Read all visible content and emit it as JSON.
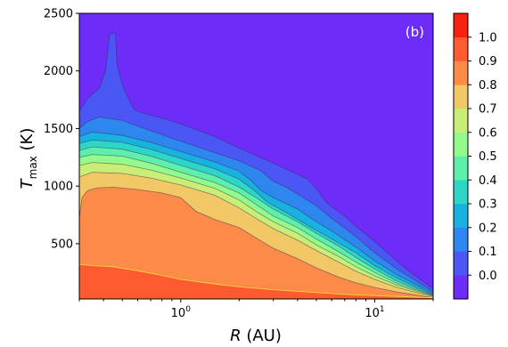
{
  "chart_data": {
    "type": "heatmap",
    "subtype": "filled-contour",
    "panel_label": "(b)",
    "xlabel": {
      "symbol": "R",
      "unit": " (AU)"
    },
    "ylabel": {
      "symbol": "T",
      "subscript": "max",
      "unit": " (K)"
    },
    "x_scale": "log",
    "xlim": [
      0.3,
      20
    ],
    "ylim": [
      20,
      2500
    ],
    "x_ticks": [
      {
        "value": 1,
        "base": "10",
        "exp": "0"
      },
      {
        "value": 10,
        "base": "10",
        "exp": "1"
      }
    ],
    "y_ticks": [
      500,
      1000,
      1500,
      2000,
      2500
    ],
    "colorbar": {
      "ticks": [
        "0.0",
        "0.1",
        "0.2",
        "0.3",
        "0.4",
        "0.5",
        "0.6",
        "0.7",
        "0.8",
        "0.9",
        "1.0"
      ],
      "levels": [
        0.0,
        0.1,
        0.2,
        0.3,
        0.4,
        0.5,
        0.6,
        0.7,
        0.8,
        0.9,
        1.0
      ],
      "colors": [
        "#6d2cf7",
        "#4a57f4",
        "#2e86ef",
        "#18b1e0",
        "#2dd6c6",
        "#5ef0aa",
        "#93fb8b",
        "#c9ee76",
        "#f2c867",
        "#fc8b48",
        "#ff5a30",
        "#f7210f"
      ]
    },
    "contour_boundaries": [
      {
        "level": 0.05,
        "points": [
          [
            0.3,
            1650
          ],
          [
            0.33,
            1760
          ],
          [
            0.38,
            1850
          ],
          [
            0.41,
            2000
          ],
          [
            0.43,
            2320
          ],
          [
            0.46,
            2330
          ],
          [
            0.47,
            2050
          ],
          [
            0.5,
            1880
          ],
          [
            0.53,
            1780
          ],
          [
            0.56,
            1700
          ],
          [
            0.58,
            1660
          ],
          [
            0.62,
            1640
          ],
          [
            0.8,
            1590
          ],
          [
            1.0,
            1540
          ],
          [
            1.5,
            1430
          ],
          [
            2.0,
            1330
          ],
          [
            3.0,
            1200
          ],
          [
            4.0,
            1100
          ],
          [
            4.5,
            1060
          ],
          [
            5.0,
            980
          ],
          [
            5.5,
            880
          ],
          [
            6.0,
            820
          ],
          [
            7.0,
            740
          ],
          [
            8.0,
            650
          ],
          [
            10.0,
            520
          ],
          [
            12.0,
            400
          ],
          [
            15.0,
            260
          ],
          [
            20.0,
            110
          ]
        ]
      },
      {
        "level": 0.15,
        "points": [
          [
            0.3,
            1500
          ],
          [
            0.33,
            1560
          ],
          [
            0.38,
            1600
          ],
          [
            0.5,
            1570
          ],
          [
            0.7,
            1480
          ],
          [
            1.0,
            1390
          ],
          [
            1.5,
            1290
          ],
          [
            2.0,
            1220
          ],
          [
            2.6,
            1130
          ],
          [
            3.0,
            1040
          ],
          [
            3.5,
            990
          ],
          [
            4.0,
            930
          ],
          [
            5.0,
            830
          ],
          [
            6.0,
            720
          ],
          [
            8.0,
            560
          ],
          [
            10.0,
            420
          ],
          [
            13.0,
            280
          ],
          [
            20.0,
            85
          ]
        ]
      },
      {
        "level": 0.25,
        "points": [
          [
            0.3,
            1430
          ],
          [
            0.35,
            1470
          ],
          [
            0.5,
            1440
          ],
          [
            0.7,
            1380
          ],
          [
            1.0,
            1300
          ],
          [
            1.5,
            1210
          ],
          [
            2.0,
            1130
          ],
          [
            2.3,
            1050
          ],
          [
            2.6,
            960
          ],
          [
            3.0,
            900
          ],
          [
            4.0,
            800
          ],
          [
            5.0,
            690
          ],
          [
            6.0,
            610
          ],
          [
            8.0,
            470
          ],
          [
            10.0,
            350
          ],
          [
            13.0,
            230
          ],
          [
            20.0,
            70
          ]
        ]
      },
      {
        "level": 0.35,
        "points": [
          [
            0.3,
            1370
          ],
          [
            0.35,
            1400
          ],
          [
            0.5,
            1380
          ],
          [
            0.7,
            1320
          ],
          [
            1.0,
            1240
          ],
          [
            1.5,
            1150
          ],
          [
            2.0,
            1060
          ],
          [
            2.4,
            960
          ],
          [
            2.8,
            860
          ],
          [
            3.5,
            770
          ],
          [
            4.5,
            660
          ],
          [
            6.0,
            540
          ],
          [
            8.0,
            420
          ],
          [
            10.0,
            310
          ],
          [
            13.0,
            200
          ],
          [
            20.0,
            60
          ]
        ]
      },
      {
        "level": 0.45,
        "points": [
          [
            0.3,
            1310
          ],
          [
            0.35,
            1340
          ],
          [
            0.5,
            1320
          ],
          [
            0.7,
            1260
          ],
          [
            1.0,
            1180
          ],
          [
            1.5,
            1090
          ],
          [
            2.0,
            990
          ],
          [
            2.5,
            890
          ],
          [
            3.0,
            800
          ],
          [
            4.0,
            690
          ],
          [
            5.0,
            590
          ],
          [
            6.5,
            480
          ],
          [
            8.0,
            380
          ],
          [
            10.0,
            280
          ],
          [
            13.0,
            175
          ],
          [
            20.0,
            55
          ]
        ]
      },
      {
        "level": 0.55,
        "points": [
          [
            0.3,
            1250
          ],
          [
            0.35,
            1275
          ],
          [
            0.5,
            1260
          ],
          [
            0.7,
            1200
          ],
          [
            1.0,
            1120
          ],
          [
            1.5,
            1030
          ],
          [
            2.0,
            940
          ],
          [
            2.5,
            830
          ],
          [
            3.0,
            740
          ],
          [
            4.0,
            640
          ],
          [
            5.0,
            540
          ],
          [
            6.5,
            430
          ],
          [
            8.0,
            340
          ],
          [
            10.0,
            250
          ],
          [
            13.0,
            155
          ],
          [
            20.0,
            50
          ]
        ]
      },
      {
        "level": 0.65,
        "points": [
          [
            0.3,
            1180
          ],
          [
            0.35,
            1205
          ],
          [
            0.5,
            1190
          ],
          [
            0.7,
            1140
          ],
          [
            1.0,
            1070
          ],
          [
            1.5,
            980
          ],
          [
            2.0,
            880
          ],
          [
            2.5,
            770
          ],
          [
            3.0,
            690
          ],
          [
            4.0,
            590
          ],
          [
            5.0,
            490
          ],
          [
            6.5,
            390
          ],
          [
            8.0,
            300
          ],
          [
            10.0,
            220
          ],
          [
            13.0,
            140
          ],
          [
            20.0,
            45
          ]
        ]
      },
      {
        "level": 0.75,
        "points": [
          [
            0.3,
            1080
          ],
          [
            0.35,
            1120
          ],
          [
            0.5,
            1110
          ],
          [
            0.7,
            1070
          ],
          [
            1.0,
            1010
          ],
          [
            1.5,
            920
          ],
          [
            2.0,
            810
          ],
          [
            2.5,
            710
          ],
          [
            3.0,
            630
          ],
          [
            4.0,
            530
          ],
          [
            5.0,
            440
          ],
          [
            6.5,
            340
          ],
          [
            8.0,
            260
          ],
          [
            10.0,
            190
          ],
          [
            13.0,
            120
          ],
          [
            20.0,
            40
          ]
        ]
      },
      {
        "level": 0.85,
        "points": [
          [
            0.3,
            720
          ],
          [
            0.31,
            900
          ],
          [
            0.33,
            960
          ],
          [
            0.37,
            985
          ],
          [
            0.45,
            990
          ],
          [
            0.6,
            970
          ],
          [
            0.8,
            940
          ],
          [
            1.0,
            900
          ],
          [
            1.2,
            780
          ],
          [
            1.5,
            710
          ],
          [
            2.0,
            640
          ],
          [
            2.5,
            540
          ],
          [
            3.0,
            460
          ],
          [
            4.0,
            370
          ],
          [
            5.0,
            290
          ],
          [
            6.5,
            210
          ],
          [
            8.0,
            160
          ],
          [
            10.0,
            120
          ],
          [
            13.0,
            80
          ],
          [
            20.0,
            30
          ]
        ]
      },
      {
        "level": 0.95,
        "points": [
          [
            0.3,
            320
          ],
          [
            0.35,
            310
          ],
          [
            0.45,
            300
          ],
          [
            0.6,
            265
          ],
          [
            0.8,
            225
          ],
          [
            1.0,
            190
          ],
          [
            1.5,
            150
          ],
          [
            2.0,
            125
          ],
          [
            3.0,
            100
          ],
          [
            5.0,
            75
          ],
          [
            8.0,
            55
          ],
          [
            13.0,
            42
          ],
          [
            20.0,
            30
          ]
        ]
      }
    ]
  }
}
